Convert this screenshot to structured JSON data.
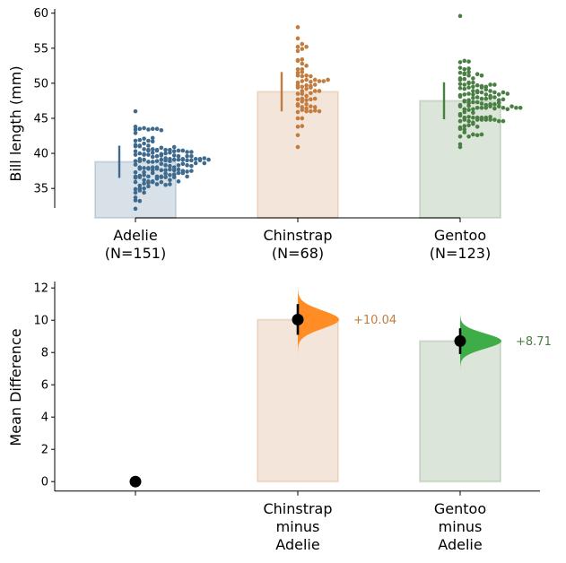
{
  "colors": {
    "Adelie": "#3e6a8e",
    "Chinstrap": "#c27c3f",
    "Gentoo": "#4a7f43",
    "Chinstrap_violin": "#ff8c25",
    "Gentoo_violin": "#3fad47"
  },
  "chart_data": [
    {
      "type": "swarm",
      "ylabel": "Bill length (mm)",
      "ylim": [
        30.8,
        60.6
      ],
      "yticks": [
        35,
        40,
        45,
        50,
        55,
        60
      ],
      "groups": [
        {
          "name": "Adelie",
          "label": [
            "Adelie",
            "(N=151)"
          ],
          "n": 151,
          "mean": 38.8,
          "sd": 2.7,
          "min": 32.1,
          "max": 46.0
        },
        {
          "name": "Chinstrap",
          "label": [
            "Chinstrap",
            "(N=68)"
          ],
          "n": 68,
          "mean": 48.8,
          "sd": 3.3,
          "min": 40.9,
          "max": 58.0
        },
        {
          "name": "Gentoo",
          "label": [
            "Gentoo",
            "(N=123)"
          ],
          "n": 123,
          "mean": 47.5,
          "sd": 3.1,
          "min": 40.9,
          "max": 59.6
        }
      ]
    },
    {
      "type": "bar",
      "ylabel": "Mean Difference",
      "ylim": [
        -0.6,
        12.4
      ],
      "yticks": [
        0,
        2,
        4,
        6,
        8,
        10,
        12
      ],
      "categories": [
        {
          "name": "Adelie",
          "label": [],
          "value": 0,
          "ci": null,
          "annotation": ""
        },
        {
          "name": "Chinstrap",
          "label": [
            "Chinstrap",
            "minus",
            "Adelie"
          ],
          "value": 10.04,
          "ci": [
            9.1,
            11.0
          ],
          "annotation": "+10.04"
        },
        {
          "name": "Gentoo",
          "label": [
            "Gentoo",
            "minus",
            "Adelie"
          ],
          "value": 8.71,
          "ci": [
            7.9,
            9.5
          ],
          "annotation": "+8.71"
        }
      ]
    }
  ]
}
